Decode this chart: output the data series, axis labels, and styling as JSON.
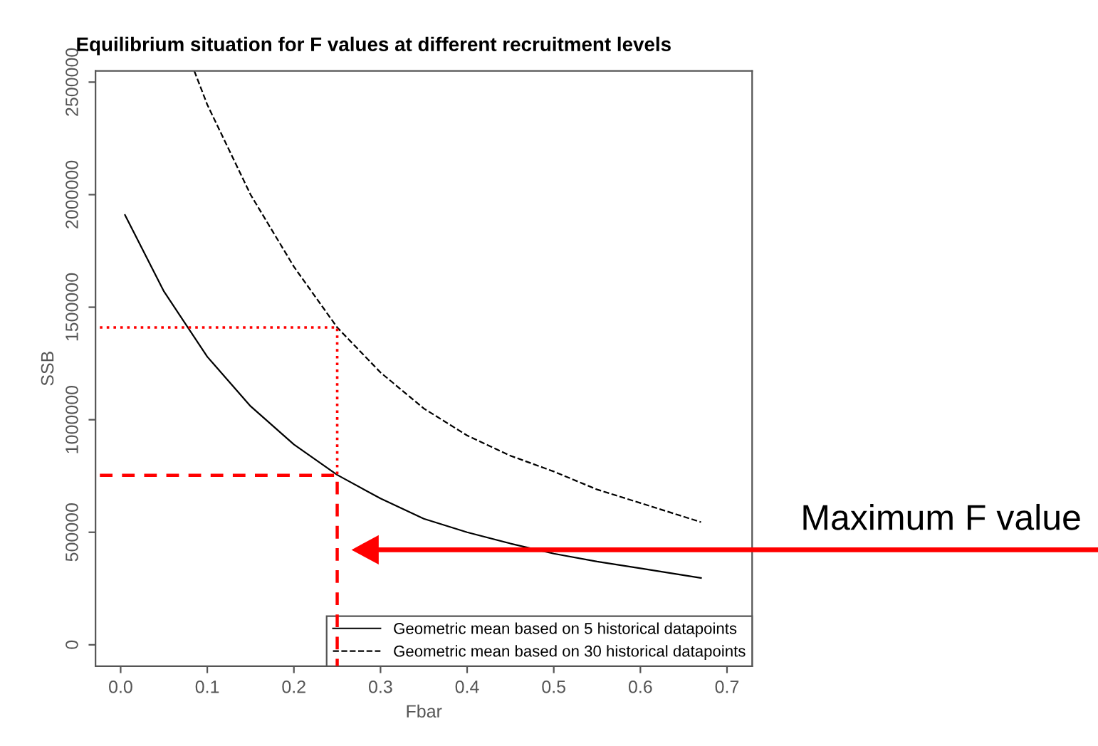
{
  "chart_data": {
    "type": "line",
    "title": "Equilibrium situation for F values at different recruitment levels",
    "xlabel": "Fbar",
    "ylabel": "SSB",
    "xlim": [
      -0.029,
      0.729
    ],
    "ylim": [
      -95000,
      2550000
    ],
    "xticks": [
      {
        "value": 0,
        "label": "0.0"
      },
      0.1,
      0.2,
      0.3,
      0.4,
      0.5,
      0.6,
      0.7
    ],
    "yticks": [
      0,
      500000,
      1000000,
      1500000,
      2000000,
      2500000
    ],
    "grid": false,
    "legend": "bottom right",
    "marker": "none",
    "series": [
      {
        "name": "Geometric mean based on 5 historical datapoints",
        "color": "#000000",
        "line_style": "solid",
        "x": [
          0.005,
          0.05,
          0.1,
          0.15,
          0.2,
          0.25,
          0.3,
          0.35,
          0.4,
          0.45,
          0.5,
          0.55,
          0.6,
          0.67
        ],
        "values": [
          1910000,
          1570000,
          1280000,
          1060000,
          890000,
          755000,
          650000,
          560000,
          500000,
          450000,
          405000,
          370000,
          340000,
          297000
        ]
      },
      {
        "name": "Geometric mean based on 30 historical datapoints",
        "color": "#000000",
        "line_style": "dashed",
        "x": [
          0.085,
          0.1,
          0.15,
          0.2,
          0.25,
          0.3,
          0.35,
          0.4,
          0.45,
          0.5,
          0.55,
          0.6,
          0.67
        ],
        "values": [
          2550000,
          2400000,
          2000000,
          1680000,
          1410000,
          1210000,
          1050000,
          930000,
          840000,
          770000,
          690000,
          630000,
          545000
        ]
      },
      {
        "color": "#ff0000",
        "line_style": "dotted",
        "x": [
          -0.024,
          0.25,
          0.25
        ],
        "values": [
          1410000,
          1410000,
          753000
        ]
      },
      {
        "color": "#ff0000",
        "line_style": "dashed",
        "x": [
          -0.024,
          0.25,
          0.25
        ],
        "values": [
          753000,
          753000,
          -95000
        ]
      }
    ],
    "annotations": [
      "Maximum F value"
    ]
  }
}
